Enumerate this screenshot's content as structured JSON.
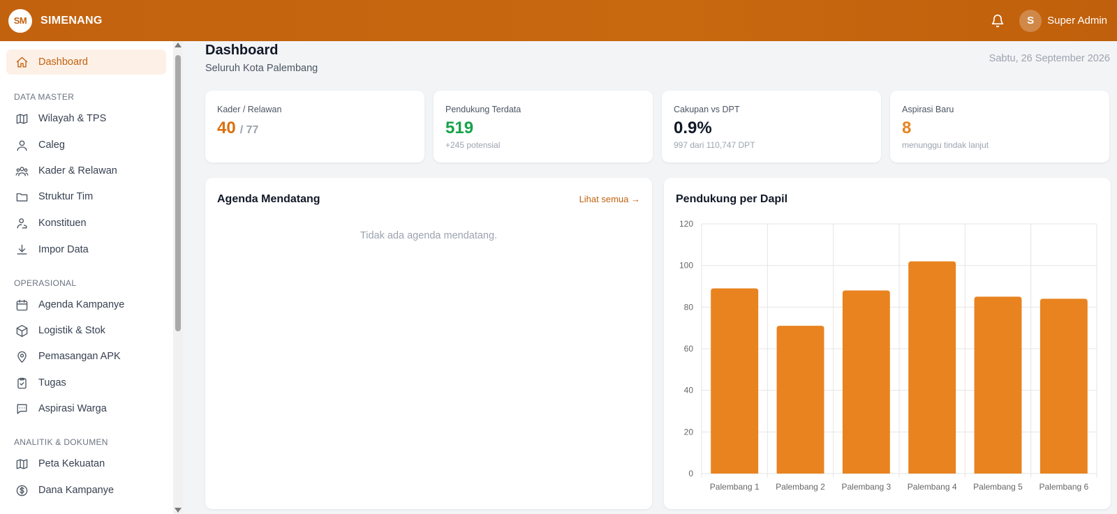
{
  "header": {
    "logo_text": "SM",
    "app_name": "SIMENANG",
    "user_initial": "S",
    "user_name": "Super Admin"
  },
  "sidebar": {
    "dashboard": "Dashboard",
    "sections": {
      "data_master": "DATA MASTER",
      "operasional": "OPERASIONAL",
      "analitik": "ANALITIK & DOKUMEN"
    },
    "items": {
      "wilayah": "Wilayah & TPS",
      "caleg": "Caleg",
      "kader": "Kader & Relawan",
      "struktur": "Struktur Tim",
      "konstituen": "Konstituen",
      "impor": "Impor Data",
      "agenda": "Agenda Kampanye",
      "logistik": "Logistik & Stok",
      "apk": "Pemasangan APK",
      "tugas": "Tugas",
      "aspirasi": "Aspirasi Warga",
      "peta": "Peta Kekuatan",
      "dana": "Dana Kampanye"
    }
  },
  "page": {
    "title": "Dashboard",
    "subtitle": "Seluruh Kota Palembang",
    "date": "Sabtu, 26 September 2026"
  },
  "stats": {
    "kader": {
      "label": "Kader / Relawan",
      "value": "40",
      "suffix": "/ 77",
      "color": "#d9700f"
    },
    "pendukung": {
      "label": "Pendukung Terdata",
      "value": "519",
      "note": "+245 potensial",
      "color": "#16a34a"
    },
    "cakupan": {
      "label": "Cakupan vs DPT",
      "value": "0.9%",
      "note": "997 dari 110,747 DPT",
      "color": "#111827"
    },
    "aspirasi": {
      "label": "Aspirasi Baru",
      "value": "8",
      "note": "menunggu tindak lanjut",
      "color": "#e8831f"
    }
  },
  "agenda": {
    "title": "Agenda Mendatang",
    "link": "Lihat semua →",
    "empty": "Tidak ada agenda mendatang."
  },
  "chart_panel": {
    "title": "Pendukung per Dapil"
  },
  "chart_data": {
    "type": "bar",
    "title": "Pendukung per Dapil",
    "categories": [
      "Palembang 1",
      "Palembang 2",
      "Palembang 3",
      "Palembang 4",
      "Palembang 5",
      "Palembang 6"
    ],
    "values": [
      89,
      71,
      88,
      102,
      85,
      84
    ],
    "ylim": [
      0,
      120
    ],
    "yticks": [
      0,
      20,
      40,
      60,
      80,
      100,
      120
    ],
    "color": "#e8831f",
    "grid": true
  }
}
